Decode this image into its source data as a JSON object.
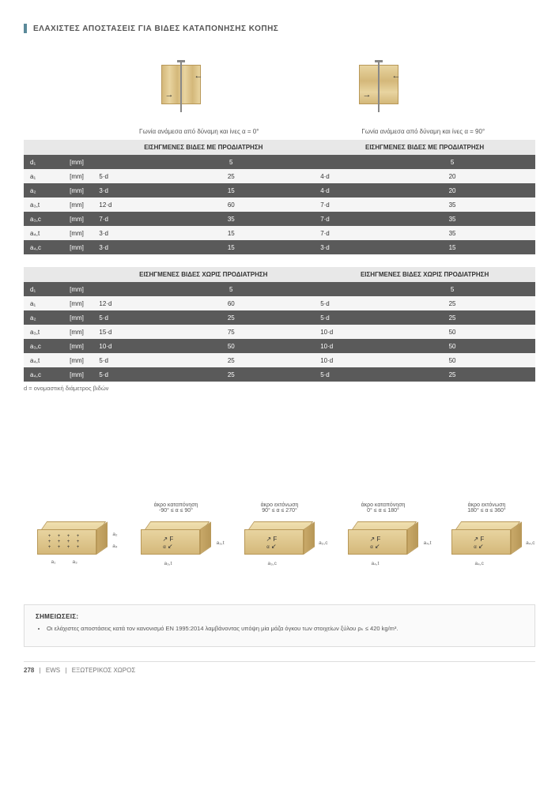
{
  "title": "ΕΛΑΧΙΣΤΕΣ ΑΠΟΣΤΑΣΕΙΣ ΓΙΑ ΒΙΔΕΣ ΚΑΤΑΠΟΝΗΣΗΣ ΚΟΠΗΣ",
  "captions": {
    "left": "Γωνία ανάμεσα από δύναμη\nκαι ίνες α = 0°",
    "right": "Γωνία ανάμεσα από δύναμη και ίνες α = 90°"
  },
  "colors": {
    "accent": "#5b8a9a",
    "row_dark_bg": "#5a5a5a",
    "row_light_bg": "#f5f5f5",
    "section_header_bg": "#e8e8e8",
    "wood_light": "#e8d4a0",
    "wood_dark": "#d4b87a",
    "text": "#333333"
  },
  "table1": {
    "section_label": "ΕΙΣΗΓΜΕΝΕΣ ΒΙΔΕΣ ΜΕ ΠΡΟΔΙΑΤΡΗΣΗ",
    "header_sym": "d₁",
    "header_unit": "[mm]",
    "header_val": "5",
    "rows": [
      {
        "sym": "a₁",
        "unit": "[mm]",
        "fL": "5·d",
        "vL": "25",
        "fR": "4·d",
        "vR": "20",
        "shade": "lt"
      },
      {
        "sym": "a₂",
        "unit": "[mm]",
        "fL": "3·d",
        "vL": "15",
        "fR": "4·d",
        "vR": "20",
        "shade": "dk"
      },
      {
        "sym": "a₃,t",
        "unit": "[mm]",
        "fL": "12·d",
        "vL": "60",
        "fR": "7·d",
        "vR": "35",
        "shade": "lt"
      },
      {
        "sym": "a₃,c",
        "unit": "[mm]",
        "fL": "7·d",
        "vL": "35",
        "fR": "7·d",
        "vR": "35",
        "shade": "dk"
      },
      {
        "sym": "a₄,t",
        "unit": "[mm]",
        "fL": "3·d",
        "vL": "15",
        "fR": "7·d",
        "vR": "35",
        "shade": "lt"
      },
      {
        "sym": "a₄,c",
        "unit": "[mm]",
        "fL": "3·d",
        "vL": "15",
        "fR": "3·d",
        "vR": "15",
        "shade": "dk"
      }
    ]
  },
  "table2": {
    "section_label": "ΕΙΣΗΓΜΕΝΕΣ ΒΙΔΕΣ ΧΩΡΙΣ ΠΡΟΔΙΑΤΡΗΣΗ",
    "header_sym": "d₁",
    "header_unit": "[mm]",
    "header_val": "5",
    "rows": [
      {
        "sym": "a₁",
        "unit": "[mm]",
        "fL": "12·d",
        "vL": "60",
        "fR": "5·d",
        "vR": "25",
        "shade": "lt"
      },
      {
        "sym": "a₂",
        "unit": "[mm]",
        "fL": "5·d",
        "vL": "25",
        "fR": "5·d",
        "vR": "25",
        "shade": "dk"
      },
      {
        "sym": "a₃,t",
        "unit": "[mm]",
        "fL": "15·d",
        "vL": "75",
        "fR": "10·d",
        "vR": "50",
        "shade": "lt"
      },
      {
        "sym": "a₃,c",
        "unit": "[mm]",
        "fL": "10·d",
        "vL": "50",
        "fR": "10·d",
        "vR": "50",
        "shade": "dk"
      },
      {
        "sym": "a₄,t",
        "unit": "[mm]",
        "fL": "5·d",
        "vL": "25",
        "fR": "10·d",
        "vR": "50",
        "shade": "lt"
      },
      {
        "sym": "a₄,c",
        "unit": "[mm]",
        "fL": "5·d",
        "vL": "25",
        "fR": "5·d",
        "vR": "25",
        "shade": "dk"
      }
    ]
  },
  "footnote": "d = ονομαστική διάμετρος βιδών",
  "diagrams": [
    {
      "caption_top": "",
      "caption_bot": "",
      "labels": {
        "a2": "a₂",
        "a4": "a₄",
        "a1": "a₁",
        "a3": "a₃"
      },
      "type": "grid"
    },
    {
      "caption_top": "άκρο καταπόνηση",
      "caption_bot": "-90° ≤ α ≤ 90°",
      "label": "a₃,t",
      "type": "force"
    },
    {
      "caption_top": "άκρο εκτόνωση",
      "caption_bot": "90° ≤ α ≤ 270°",
      "label": "a₃,c",
      "type": "force"
    },
    {
      "caption_top": "άκρο καταπόνηση",
      "caption_bot": "0° ≤ α ≤ 180°",
      "label": "a₄,t",
      "type": "force"
    },
    {
      "caption_top": "άκρο εκτόνωση",
      "caption_bot": "180° ≤ α ≤ 360°",
      "label": "a₄,c",
      "type": "force"
    }
  ],
  "notes": {
    "title": "ΣΗΜΕΙΩΣΕΙΣ:",
    "items": [
      "Οι ελάχιστες αποστάσεις κατά τον κανονισμό EN 1995:2014 λαμβάνοντας υπόψη μία μάζα όγκου των στοιχείων ξύλου ρₖ ≤ 420 kg/m³."
    ]
  },
  "footer": {
    "page": "278",
    "brand": "EWS",
    "section": "ΕΞΩΤΕΡΙΚΟΣ ΧΩΡΟΣ"
  }
}
